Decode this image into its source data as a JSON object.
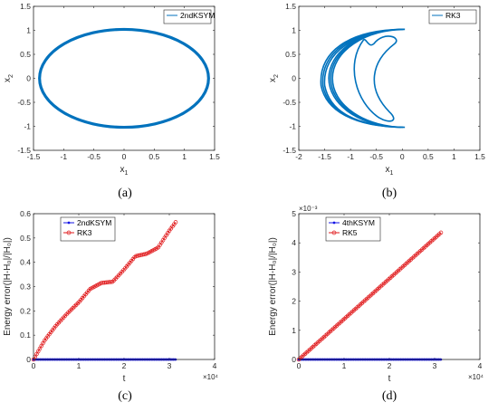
{
  "colors": {
    "blue": "#0072BD",
    "red": "#E0191B",
    "series_blue": "#1414E6",
    "axis": "#262626"
  },
  "chart_data": [
    {
      "panel": "(a)",
      "type": "line",
      "caption": "(a)",
      "legend": [
        "2ndKSYM"
      ],
      "legend_position": "top-right",
      "xlabel": "x",
      "xlabel_sub": "1",
      "ylabel": "x",
      "ylabel_sub": "2",
      "xlim": [
        -1.5,
        1.5
      ],
      "ylim": [
        -1.5,
        1.5
      ],
      "xticks": [
        "-1.5",
        "-1",
        "-0.5",
        "0",
        "0.5",
        "1",
        "1.5"
      ],
      "yticks": [
        "-1.5",
        "-1",
        "-0.5",
        "0",
        "0.5",
        "1",
        "1.5"
      ],
      "series": [
        {
          "name": "2ndKSYM",
          "shape": "ellipse",
          "x_semi_axis": 1.4,
          "y_semi_axis": 1.02,
          "center": [
            0,
            0
          ]
        }
      ]
    },
    {
      "panel": "(b)",
      "type": "line",
      "caption": "(b)",
      "legend": [
        "RK3"
      ],
      "legend_position": "top-right",
      "xlabel": "x",
      "xlabel_sub": "1",
      "ylabel": "x",
      "ylabel_sub": "2",
      "xlim": [
        -2,
        1.5
      ],
      "ylim": [
        -1.5,
        1.5
      ],
      "xticks": [
        "-2",
        "-1.5",
        "-1",
        "-0.5",
        "0",
        "0.5",
        "1",
        "1.5"
      ],
      "yticks": [
        "-1.5",
        "-1",
        "-0.5",
        "0",
        "0.5",
        "1",
        "1.5"
      ],
      "series": [
        {
          "name": "RK3",
          "outer_semi_axes": [
            1.4,
            1.02
          ],
          "inner_crescent": {
            "x": [
              -0.85,
              -0.2
            ],
            "y": [
              -0.85,
              0.82
            ]
          }
        }
      ]
    },
    {
      "panel": "(c)",
      "type": "line",
      "caption": "(c)",
      "legend": [
        "2ndKSYM",
        "RK3"
      ],
      "legend_position": "top-left",
      "xlabel": "t",
      "ylabel": "Energy error(|H-H₀|/|H₀|)",
      "xlim": [
        0,
        4
      ],
      "ylim": [
        0,
        0.6
      ],
      "x_exponent": "×10⁴",
      "xticks": [
        "0",
        "1",
        "2",
        "3",
        "4"
      ],
      "yticks": [
        "0",
        "0.1",
        "0.2",
        "0.3",
        "0.4",
        "0.5",
        "0.6"
      ],
      "series": [
        {
          "name": "2ndKSYM",
          "x": [
            0,
            3.14
          ],
          "y": [
            0.0,
            0.0
          ]
        },
        {
          "name": "RK3",
          "x": [
            0,
            0.25,
            0.5,
            0.75,
            1.0,
            1.25,
            1.5,
            1.75,
            2.0,
            2.25,
            2.5,
            2.75,
            3.0,
            3.14
          ],
          "y": [
            0,
            0.08,
            0.14,
            0.19,
            0.235,
            0.29,
            0.315,
            0.32,
            0.37,
            0.425,
            0.435,
            0.46,
            0.53,
            0.565
          ]
        }
      ]
    },
    {
      "panel": "(d)",
      "type": "line",
      "caption": "(d)",
      "legend": [
        "4thKSYM",
        "RK5"
      ],
      "legend_position": "top-left",
      "xlabel": "t",
      "ylabel": "Energy error(|H-H₀|/|H₀|)",
      "xlim": [
        0,
        4
      ],
      "ylim": [
        0,
        5
      ],
      "x_exponent": "×10⁴",
      "y_exponent": "×10⁻³",
      "xticks": [
        "0",
        "1",
        "2",
        "3",
        "4"
      ],
      "yticks": [
        "0",
        "1",
        "2",
        "3",
        "4",
        "5"
      ],
      "series": [
        {
          "name": "4thKSYM",
          "x": [
            0,
            3.14
          ],
          "y": [
            0.0,
            0.0
          ]
        },
        {
          "name": "RK5",
          "x": [
            0,
            3.14
          ],
          "y": [
            0.0,
            4.35
          ]
        }
      ]
    }
  ]
}
